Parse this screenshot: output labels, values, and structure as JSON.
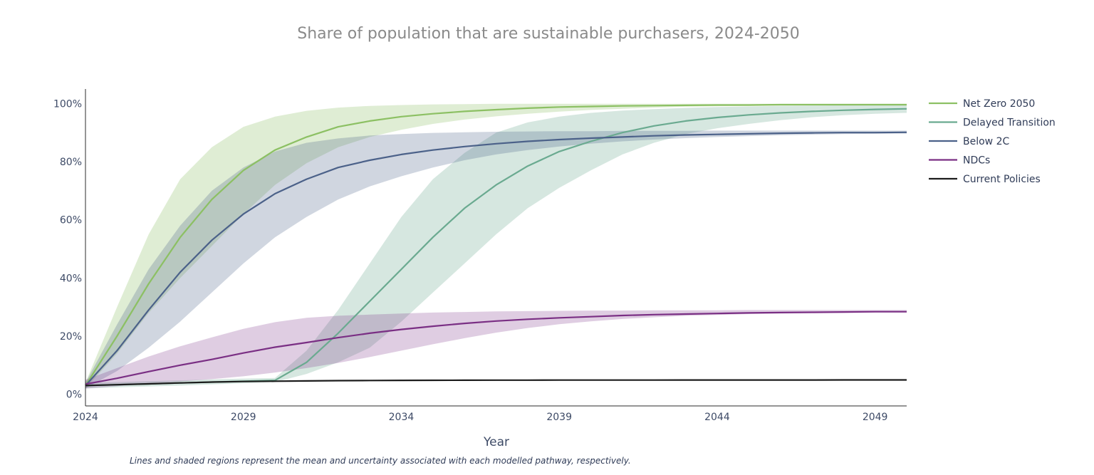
{
  "chart_data": {
    "type": "line",
    "title": "Share of population that are sustainable purchasers, 2024-2050",
    "xlabel": "Year",
    "ylabel": "",
    "note": "Lines and shaded regions represent the mean and uncertainty associated with each modelled pathway, respectively.",
    "xlim": [
      2024,
      2050
    ],
    "ylim": [
      -4,
      105
    ],
    "x_ticks": [
      2024,
      2029,
      2034,
      2039,
      2044,
      2049
    ],
    "x_tick_labels": [
      "2024",
      "2029",
      "2034",
      "2039",
      "2044",
      "2049"
    ],
    "y_ticks": [
      0,
      20,
      40,
      60,
      80,
      100
    ],
    "y_tick_labels": [
      "0%",
      "20%",
      "40%",
      "60%",
      "80%",
      "100%"
    ],
    "legend_position": "top-right",
    "x": [
      2024,
      2025,
      2026,
      2027,
      2028,
      2029,
      2030,
      2031,
      2032,
      2033,
      2034,
      2035,
      2036,
      2037,
      2038,
      2039,
      2040,
      2041,
      2042,
      2043,
      2044,
      2045,
      2046,
      2047,
      2048,
      2049,
      2050
    ],
    "series": [
      {
        "name": "Net Zero 2050",
        "color": "#8cc063",
        "band_color": "#8cc063",
        "band_opacity": 0.28,
        "values": [
          3,
          20,
          38,
          54,
          67,
          77,
          84,
          88.5,
          92,
          94,
          95.5,
          96.5,
          97.3,
          97.9,
          98.4,
          98.8,
          99,
          99.2,
          99.3,
          99.4,
          99.5,
          99.5,
          99.6,
          99.6,
          99.6,
          99.6,
          99.6
        ],
        "lower": [
          2,
          14,
          28,
          40,
          51,
          62,
          72,
          79.5,
          85,
          88.5,
          91,
          93,
          94.5,
          95.6,
          96.5,
          97.2,
          97.8,
          98.2,
          98.6,
          98.9,
          99.1,
          99.2,
          99.3,
          99.4,
          99.4,
          99.5,
          99.5
        ],
        "upper": [
          4,
          30,
          55,
          74,
          85,
          92,
          95.5,
          97.5,
          98.6,
          99.2,
          99.5,
          99.7,
          99.8,
          99.9,
          99.9,
          99.9,
          99.9,
          99.9,
          99.9,
          99.9,
          99.9,
          99.9,
          99.9,
          99.9,
          99.9,
          99.9,
          99.9
        ]
      },
      {
        "name": "Delayed Transition",
        "color": "#6aaa90",
        "band_color": "#6aaa90",
        "band_opacity": 0.28,
        "values": [
          3,
          3.3,
          3.6,
          3.9,
          4.2,
          4.5,
          4.8,
          11,
          21,
          32,
          43,
          54,
          64,
          72,
          78.5,
          83.5,
          87,
          90,
          92.3,
          94,
          95.2,
          96.1,
          96.8,
          97.3,
          97.7,
          98,
          98.2
        ],
        "lower": [
          2,
          2.4,
          2.7,
          3,
          3.4,
          3.8,
          4.2,
          7,
          11,
          16,
          25,
          35,
          45,
          55,
          64,
          71,
          77,
          82.5,
          86.5,
          89.5,
          91.5,
          93,
          94.3,
          95.3,
          96,
          96.5,
          96.8
        ],
        "upper": [
          4,
          4.2,
          4.5,
          4.8,
          5.1,
          5.4,
          5.6,
          15,
          29,
          45,
          61,
          74,
          83,
          90,
          93.5,
          95.5,
          96.8,
          97.6,
          98.1,
          98.5,
          98.8,
          99,
          99.2,
          99.3,
          99.4,
          99.4,
          99.5
        ]
      },
      {
        "name": "Below 2C",
        "color": "#4b6189",
        "band_color": "#4b6189",
        "band_opacity": 0.26,
        "values": [
          3,
          15,
          29,
          42,
          53,
          62,
          69,
          74,
          78,
          80.5,
          82.5,
          84,
          85.2,
          86.2,
          87,
          87.6,
          88.1,
          88.5,
          88.9,
          89.2,
          89.4,
          89.6,
          89.8,
          89.9,
          90,
          90,
          90.1
        ],
        "lower": [
          2,
          8,
          16,
          25,
          35,
          45,
          54,
          61,
          67,
          71.5,
          75,
          78,
          80.5,
          82.5,
          84,
          85.2,
          86.2,
          87,
          87.6,
          88.1,
          88.5,
          88.8,
          89.1,
          89.3,
          89.5,
          89.6,
          89.7
        ],
        "upper": [
          4,
          24,
          43,
          58,
          70,
          78,
          83.5,
          86.5,
          88,
          89,
          89.5,
          89.9,
          90.1,
          90.3,
          90.4,
          90.5,
          90.5,
          90.6,
          90.6,
          90.6,
          90.7,
          90.7,
          90.7,
          90.7,
          90.7,
          90.7,
          90.7
        ]
      },
      {
        "name": "NDCs",
        "color": "#7a2f84",
        "band_color": "#7a2f84",
        "band_opacity": 0.24,
        "values": [
          3.5,
          5.5,
          7.8,
          10,
          12,
          14.2,
          16.2,
          17.8,
          19.5,
          21,
          22.3,
          23.4,
          24.4,
          25.2,
          25.8,
          26.3,
          26.7,
          27.1,
          27.4,
          27.6,
          27.8,
          28,
          28.1,
          28.2,
          28.3,
          28.4,
          28.4
        ],
        "lower": [
          2,
          2.8,
          3.6,
          4.4,
          5.2,
          6.2,
          7.5,
          9,
          10.8,
          12.8,
          15,
          17.2,
          19.3,
          21.2,
          22.8,
          24.1,
          25.1,
          25.9,
          26.5,
          27,
          27.3,
          27.6,
          27.8,
          27.9,
          28,
          28.1,
          28.1
        ],
        "upper": [
          5,
          9,
          13,
          16.5,
          19.6,
          22.5,
          24.8,
          26.3,
          27,
          27.4,
          27.8,
          28.1,
          28.3,
          28.5,
          28.6,
          28.7,
          28.8,
          28.8,
          28.9,
          28.9,
          28.9,
          29,
          29,
          29,
          29,
          29,
          29
        ]
      },
      {
        "name": "Current Policies",
        "color": "#1c1c1c",
        "band_color": "#1c1c1c",
        "band_opacity": 0.15,
        "values": [
          3,
          3.3,
          3.6,
          3.9,
          4.2,
          4.4,
          4.5,
          4.6,
          4.7,
          4.75,
          4.8,
          4.82,
          4.84,
          4.86,
          4.87,
          4.88,
          4.89,
          4.9,
          4.9,
          4.91,
          4.91,
          4.92,
          4.92,
          4.92,
          4.93,
          4.93,
          4.93
        ],
        "lower": [
          2.8,
          3.1,
          3.4,
          3.7,
          4,
          4.25,
          4.4,
          4.5,
          4.6,
          4.65,
          4.7,
          4.72,
          4.74,
          4.76,
          4.77,
          4.78,
          4.79,
          4.8,
          4.8,
          4.81,
          4.81,
          4.82,
          4.82,
          4.82,
          4.83,
          4.83,
          4.83
        ],
        "upper": [
          3.2,
          3.5,
          3.8,
          4.1,
          4.4,
          4.55,
          4.6,
          4.7,
          4.8,
          4.85,
          4.9,
          4.92,
          4.94,
          4.96,
          4.97,
          4.98,
          4.99,
          5,
          5,
          5.01,
          5.01,
          5.02,
          5.02,
          5.02,
          5.03,
          5.03,
          5.03
        ]
      }
    ]
  }
}
